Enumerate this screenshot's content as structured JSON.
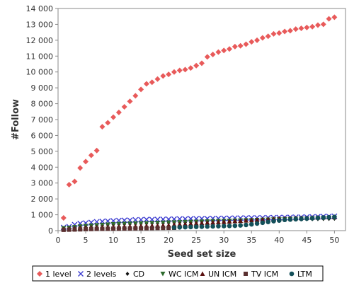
{
  "chart_data": {
    "type": "scatter",
    "title": "",
    "xlabel": "Seed set size",
    "ylabel": "#Follow",
    "xlim": [
      0,
      52
    ],
    "ylim": [
      0,
      14000
    ],
    "x_ticks": [
      0,
      5,
      10,
      15,
      20,
      25,
      30,
      35,
      40,
      45,
      50
    ],
    "x_tick_labels": [
      "0",
      "5",
      "10",
      "15",
      "20",
      "25",
      "30",
      "35",
      "40",
      "45",
      "50"
    ],
    "y_ticks": [
      0,
      1000,
      2000,
      3000,
      4000,
      5000,
      6000,
      7000,
      8000,
      9000,
      10000,
      11000,
      12000,
      13000,
      14000
    ],
    "y_tick_labels": [
      "0",
      "1 000",
      "2 000",
      "3 000",
      "4 000",
      "5 000",
      "6 000",
      "7 000",
      "8 000",
      "9 000",
      "10 000",
      "11 000",
      "12 000",
      "13 000",
      "14 000"
    ],
    "grid": false,
    "legend_position": "bottom",
    "series": [
      {
        "name": "1 level",
        "marker": "diamond",
        "color": "#e85a5a",
        "x": [
          1,
          2,
          3,
          4,
          5,
          6,
          7,
          8,
          9,
          10,
          11,
          12,
          13,
          14,
          15,
          16,
          17,
          18,
          19,
          20,
          21,
          22,
          23,
          24,
          25,
          26,
          27,
          28,
          29,
          30,
          31,
          32,
          33,
          34,
          35,
          36,
          37,
          38,
          39,
          40,
          41,
          42,
          43,
          44,
          45,
          46,
          47,
          48,
          49,
          50
        ],
        "y": [
          800,
          2900,
          3100,
          3950,
          4350,
          4750,
          5050,
          6550,
          6800,
          7150,
          7450,
          7800,
          8150,
          8500,
          8900,
          9250,
          9350,
          9550,
          9750,
          9850,
          10000,
          10100,
          10150,
          10250,
          10400,
          10550,
          10950,
          11100,
          11250,
          11350,
          11450,
          11600,
          11650,
          11750,
          11900,
          12000,
          12150,
          12250,
          12400,
          12450,
          12550,
          12600,
          12700,
          12750,
          12800,
          12850,
          12950,
          13000,
          13350,
          13450
        ]
      },
      {
        "name": "2 levels",
        "marker": "x",
        "color": "#3a3ad0",
        "x": [
          1,
          2,
          3,
          4,
          5,
          6,
          7,
          8,
          9,
          10,
          11,
          12,
          13,
          14,
          15,
          16,
          17,
          18,
          19,
          20,
          21,
          22,
          23,
          24,
          25,
          26,
          27,
          28,
          29,
          30,
          31,
          32,
          33,
          34,
          35,
          36,
          37,
          38,
          39,
          40,
          41,
          42,
          43,
          44,
          45,
          46,
          47,
          48,
          49,
          50
        ],
        "y": [
          200,
          250,
          380,
          450,
          480,
          520,
          560,
          580,
          600,
          620,
          640,
          650,
          660,
          680,
          690,
          700,
          700,
          710,
          720,
          720,
          730,
          740,
          740,
          750,
          750,
          760,
          760,
          770,
          770,
          780,
          780,
          790,
          790,
          800,
          800,
          810,
          810,
          820,
          820,
          830,
          830,
          840,
          850,
          850,
          860,
          870,
          880,
          890,
          900,
          910
        ]
      },
      {
        "name": "CD",
        "marker": "small-diamond",
        "color": "#111111",
        "x": [
          1,
          2,
          3,
          4,
          5,
          6,
          7,
          8,
          9,
          10,
          11,
          12,
          13,
          14,
          15,
          16,
          17,
          18,
          19,
          20,
          21,
          22,
          23,
          24,
          25,
          26,
          27,
          28,
          29,
          30,
          31,
          32,
          33,
          34,
          35,
          36,
          37,
          38,
          39,
          40,
          41,
          42,
          43,
          44,
          45,
          46,
          47,
          48,
          49,
          50
        ],
        "y": [
          120,
          150,
          200,
          250,
          280,
          300,
          320,
          340,
          360,
          380,
          400,
          410,
          420,
          430,
          440,
          450,
          460,
          470,
          480,
          490,
          500,
          510,
          520,
          530,
          540,
          550,
          560,
          570,
          580,
          590,
          600,
          610,
          620,
          630,
          640,
          650,
          660,
          670,
          680,
          690,
          700,
          705,
          710,
          715,
          720,
          725,
          730,
          735,
          740,
          750
        ]
      },
      {
        "name": "WC ICM",
        "marker": "triangle-down",
        "color": "#2e6b2e",
        "x": [
          1,
          2,
          3,
          4,
          5,
          6,
          7,
          8,
          9,
          10,
          11,
          12,
          13,
          14,
          15,
          16,
          17,
          18,
          19,
          20,
          21,
          22,
          23,
          24,
          25,
          26,
          27,
          28,
          29,
          30,
          31,
          32,
          33,
          34,
          35,
          36,
          37,
          38,
          39,
          40,
          41,
          42,
          43,
          44,
          45,
          46,
          47,
          48,
          49,
          50
        ],
        "y": [
          150,
          180,
          220,
          260,
          290,
          320,
          340,
          360,
          380,
          400,
          420,
          430,
          440,
          450,
          460,
          470,
          480,
          490,
          500,
          510,
          520,
          530,
          540,
          550,
          560,
          570,
          580,
          590,
          600,
          610,
          620,
          630,
          640,
          650,
          660,
          670,
          680,
          690,
          700,
          710,
          720,
          730,
          740,
          750,
          760,
          770,
          780,
          790,
          800,
          810
        ]
      },
      {
        "name": "UN ICM",
        "marker": "triangle-up",
        "color": "#5a1010",
        "x": [
          1,
          2,
          3,
          4,
          5,
          6,
          7,
          8,
          9,
          10,
          11,
          12,
          13,
          14,
          15,
          16,
          17,
          18,
          19,
          20,
          21,
          22,
          23,
          24,
          25,
          26,
          27,
          28,
          29,
          30,
          31,
          32,
          33,
          34,
          35,
          36,
          37,
          38,
          39,
          40,
          41,
          42,
          43,
          44,
          45,
          46,
          47,
          48,
          49,
          50
        ],
        "y": [
          100,
          120,
          150,
          170,
          190,
          200,
          210,
          220,
          230,
          240,
          250,
          260,
          270,
          280,
          290,
          300,
          310,
          320,
          330,
          340,
          380,
          400,
          420,
          440,
          460,
          480,
          500,
          520,
          540,
          560,
          580,
          600,
          620,
          640,
          660,
          680,
          700,
          720,
          740,
          760,
          770,
          780,
          790,
          800,
          810,
          820,
          830,
          840,
          850,
          860
        ]
      },
      {
        "name": "TV ICM",
        "marker": "square",
        "color": "#5a3030",
        "x": [
          1,
          2,
          3,
          4,
          5,
          6,
          7,
          8,
          9,
          10,
          11,
          12,
          13,
          14,
          15,
          16,
          17,
          18,
          19,
          20,
          21
        ],
        "y": [
          50,
          60,
          70,
          80,
          90,
          100,
          110,
          115,
          120,
          125,
          130,
          135,
          140,
          145,
          150,
          155,
          160,
          165,
          170,
          175,
          180
        ]
      },
      {
        "name": "LTM",
        "marker": "circle",
        "color": "#14505a",
        "x": [
          21,
          22,
          23,
          24,
          25,
          26,
          27,
          28,
          29,
          30,
          31,
          32,
          33,
          34,
          35,
          36,
          37,
          38,
          39,
          40,
          41,
          42,
          43,
          44,
          45,
          46,
          47,
          48,
          49,
          50
        ],
        "y": [
          200,
          210,
          220,
          230,
          240,
          250,
          260,
          270,
          280,
          290,
          300,
          310,
          330,
          360,
          400,
          450,
          500,
          550,
          600,
          640,
          680,
          700,
          720,
          740,
          760,
          780,
          800,
          820,
          840,
          860
        ]
      }
    ]
  }
}
